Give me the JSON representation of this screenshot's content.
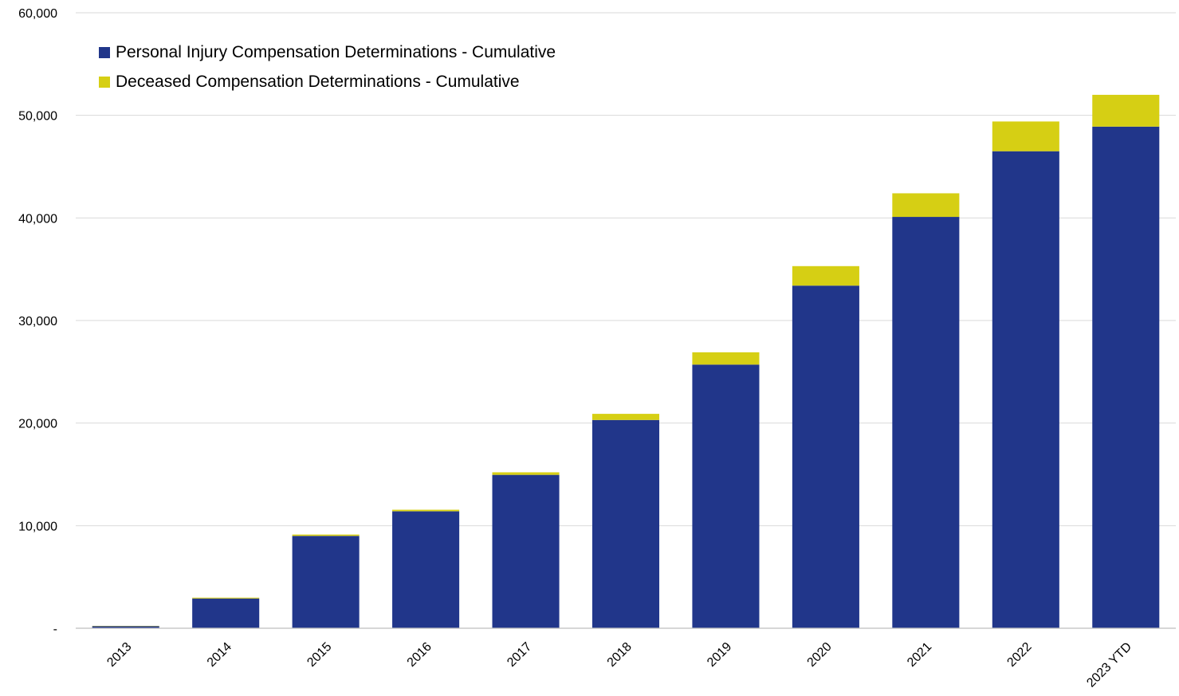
{
  "chart_data": {
    "type": "bar",
    "stacked": true,
    "categories": [
      "2013",
      "2014",
      "2015",
      "2016",
      "2017",
      "2018",
      "2019",
      "2020",
      "2021",
      "2022",
      "2023 YTD"
    ],
    "series": [
      {
        "name": "Personal Injury Compensation Determinations - Cumulative",
        "color": "#21368a",
        "values": [
          200,
          2900,
          9000,
          11400,
          14950,
          20300,
          25700,
          33400,
          40100,
          46500,
          48900
        ]
      },
      {
        "name": "Deceased Compensation Determinations - Cumulative",
        "color": "#d6cf14",
        "values": [
          30,
          80,
          130,
          150,
          250,
          600,
          1200,
          1900,
          2300,
          2900,
          3100
        ]
      }
    ],
    "ylim": [
      0,
      60000
    ],
    "yticks": [
      0,
      10000,
      20000,
      30000,
      40000,
      50000,
      60000
    ],
    "ytick_labels": [
      "-",
      "10,000",
      "20,000",
      "30,000",
      "40,000",
      "50,000",
      "60,000"
    ],
    "grid": true,
    "legend_position": "top-left",
    "title": "",
    "xlabel": "",
    "ylabel": ""
  }
}
